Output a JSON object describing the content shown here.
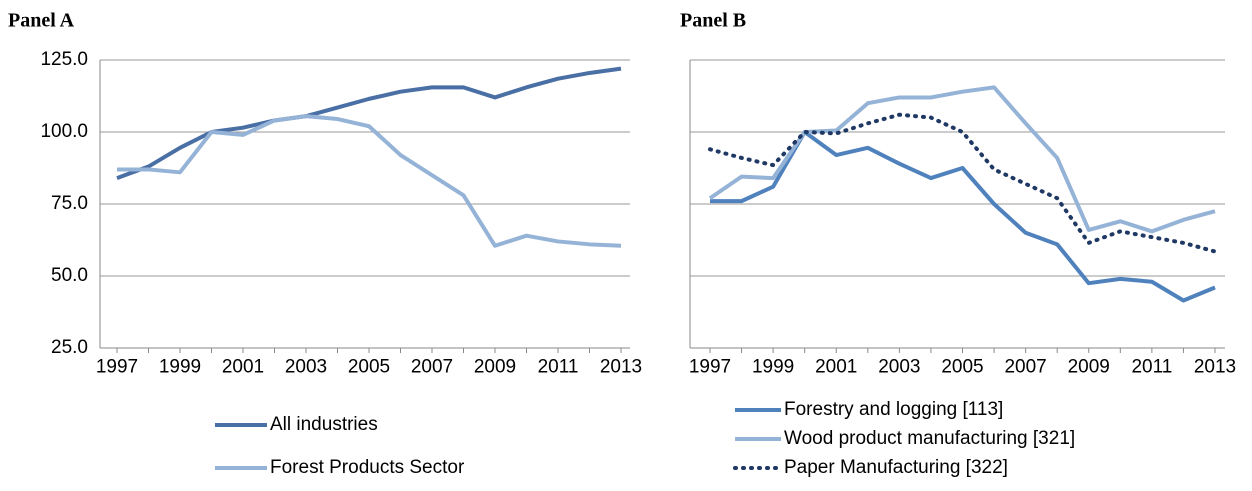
{
  "chart_data": [
    {
      "type": "line",
      "title": "Panel A",
      "x": [
        1997,
        1998,
        1999,
        2000,
        2001,
        2002,
        2003,
        2004,
        2005,
        2006,
        2007,
        2008,
        2009,
        2010,
        2011,
        2012,
        2013
      ],
      "xlim": [
        1997,
        2013
      ],
      "xticks": [
        1997,
        1999,
        2001,
        2003,
        2005,
        2007,
        2009,
        2011,
        2013
      ],
      "ylim": [
        25,
        125
      ],
      "yticks": [
        {
          "value": 25,
          "label": "25.0"
        },
        {
          "value": 50,
          "label": "50.0"
        },
        {
          "value": 75,
          "label": "75.0"
        },
        {
          "value": 100,
          "label": "100.0"
        },
        {
          "value": 125,
          "label": "125.0"
        }
      ],
      "grid": true,
      "legend": "bottom",
      "series": [
        {
          "name": "All industries",
          "color": "#4a6fa5",
          "line_style": "solid",
          "values": [
            84,
            88,
            94.5,
            100,
            101.5,
            104,
            105.5,
            108.5,
            111.5,
            114,
            115.5,
            115.5,
            112,
            115.5,
            118.5,
            120.5,
            122
          ]
        },
        {
          "name": "Forest Products Sector",
          "color": "#95b3d7",
          "line_style": "solid",
          "values": [
            87,
            87,
            86,
            100,
            99,
            104,
            105.5,
            104.5,
            102,
            92,
            85,
            78,
            60.5,
            64,
            62,
            61,
            60.5
          ]
        }
      ]
    },
    {
      "type": "line",
      "title": "Panel B",
      "x": [
        1997,
        1998,
        1999,
        2000,
        2001,
        2002,
        2003,
        2004,
        2005,
        2006,
        2007,
        2008,
        2009,
        2010,
        2011,
        2012,
        2013
      ],
      "xlim": [
        1997,
        2013
      ],
      "xticks": [
        1997,
        1999,
        2001,
        2003,
        2005,
        2007,
        2009,
        2011,
        2013
      ],
      "ylim": [
        25,
        125
      ],
      "yticks": [
        25,
        50,
        75,
        100,
        125
      ],
      "grid": true,
      "legend": "bottom",
      "series": [
        {
          "name": "Forestry and logging [113]",
          "color": "#4f81bd",
          "line_style": "solid",
          "values": [
            76,
            76,
            81,
            100,
            92,
            94.5,
            89,
            84,
            87.5,
            75,
            65,
            61,
            47.5,
            49,
            48,
            41.5,
            46
          ]
        },
        {
          "name": "Wood product manufacturing [321]",
          "color": "#95b3d7",
          "line_style": "solid",
          "values": [
            77,
            84.5,
            84,
            100,
            100.5,
            110,
            112,
            112,
            114,
            115.5,
            103,
            91,
            66,
            69,
            65.5,
            69.5,
            72.5
          ]
        },
        {
          "name": "Paper Manufacturing [322]",
          "color": "#1f3864",
          "line_style": "dotted",
          "values": [
            94,
            91,
            88.5,
            100,
            99.5,
            103,
            106,
            105,
            100,
            87,
            82,
            77,
            61.5,
            65.5,
            63.5,
            61.5,
            58.5
          ]
        }
      ]
    }
  ]
}
